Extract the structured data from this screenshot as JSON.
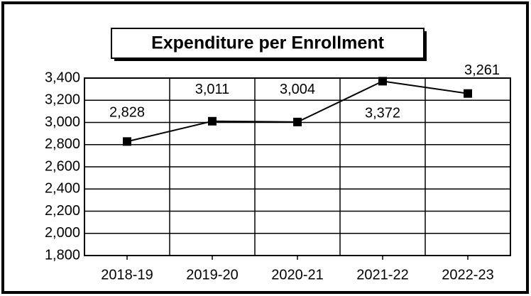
{
  "chart_data": {
    "type": "line",
    "title": "Expenditure per Enrollment",
    "categories": [
      "2018-19",
      "2019-20",
      "2020-21",
      "2021-22",
      "2022-23"
    ],
    "series": [
      {
        "name": "Expenditure per Enrollment",
        "color": "#000000",
        "values": [
          2828,
          3011,
          3004,
          3372,
          3261
        ],
        "value_labels": [
          "2,828",
          "3,011",
          "3,004",
          "3,372",
          "3,261"
        ]
      }
    ],
    "ylim": [
      1800,
      3400
    ],
    "yticks": [
      {
        "value": 1800,
        "label": "1,800"
      },
      {
        "value": 2000,
        "label": "2,000"
      },
      {
        "value": 2200,
        "label": "2,200"
      },
      {
        "value": 2400,
        "label": "2,400"
      },
      {
        "value": 2600,
        "label": "2,600"
      },
      {
        "value": 2800,
        "label": "2,800"
      },
      {
        "value": 3000,
        "label": "3,000"
      },
      {
        "value": 3200,
        "label": "3,200"
      },
      {
        "value": 3400,
        "label": "3,400"
      }
    ],
    "grid": true
  }
}
